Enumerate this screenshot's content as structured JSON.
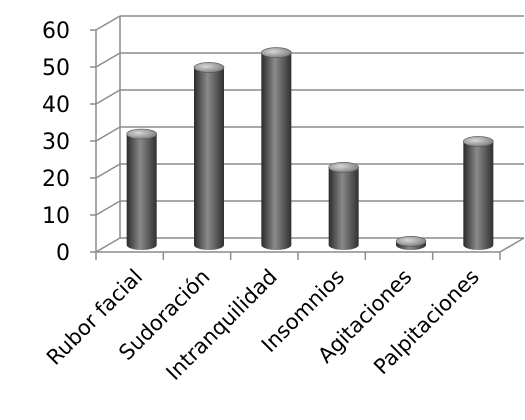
{
  "chart_data": {
    "type": "bar",
    "style": "3d-cylinder",
    "categories": [
      "Rubor facial",
      "Sudoración",
      "Intranquilidad",
      "Insomnios",
      "Agitaciones",
      "Palpitaciones"
    ],
    "values": [
      30,
      48,
      52,
      21,
      1,
      28
    ],
    "ylim": [
      0,
      60
    ],
    "yticks": [
      0,
      10,
      20,
      30,
      40,
      50,
      60
    ],
    "title": "",
    "xlabel": "",
    "ylabel": "",
    "grid": true,
    "legend": "none",
    "colors": {
      "bar_dark": "#2b2b2b",
      "bar_mid": "#8a8a8a",
      "bar_light": "#c9c9c9",
      "grid": "#8c8c8c",
      "axis": "#8c8c8c"
    }
  }
}
